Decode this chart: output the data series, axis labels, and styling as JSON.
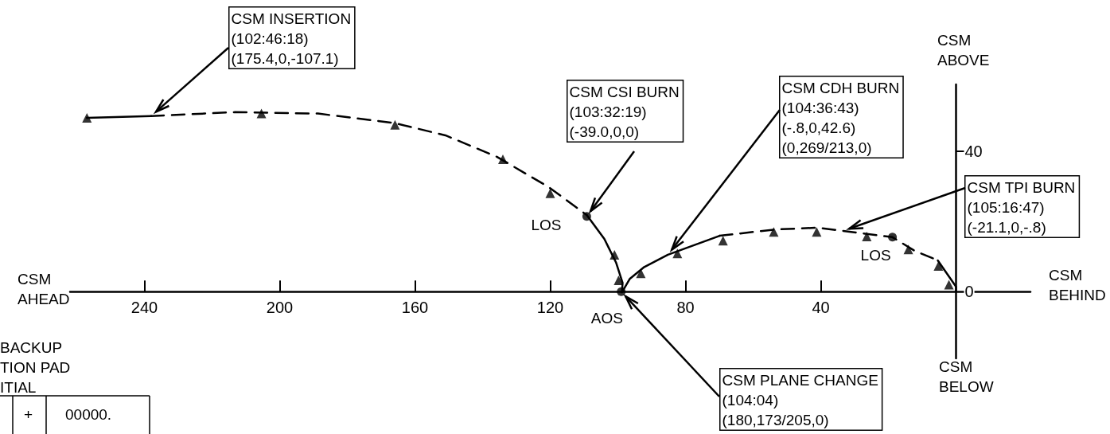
{
  "chart_data": {
    "type": "line",
    "xlim": [
      262,
      -22
    ],
    "ylim": [
      -19,
      59
    ],
    "xticks": [
      240,
      200,
      160,
      120,
      80,
      40
    ],
    "yticks": [
      0,
      40
    ],
    "grid": false,
    "series": [
      {
        "line_style": "solid",
        "color": "#000000",
        "x": [
          257,
          238
        ],
        "values": [
          49.5,
          50
        ]
      },
      {
        "line_style": "dashed",
        "color": "#000000",
        "x": [
          238,
          213.2,
          188.7,
          166.1,
          151,
          135.8,
          120.5,
          109.2
        ],
        "values": [
          50,
          51.1,
          50.7,
          48,
          44.5,
          38.4,
          29.8,
          21.8
        ]
      },
      {
        "line_style": "solid",
        "color": "#000000",
        "x": [
          109.2,
          104,
          100.5,
          98.6,
          98.8,
          96.5,
          92.2,
          85.2,
          69.9
        ],
        "values": [
          21.8,
          15,
          8.2,
          2.5,
          -0.2,
          3.6,
          7,
          10.5,
          15.9
        ]
      },
      {
        "line_style": "dashed",
        "color": "#000000",
        "x": [
          69.9,
          53.4,
          40.9,
          33.4,
          18.8,
          12.2,
          5.4
        ],
        "values": [
          15.9,
          17.7,
          18.2,
          17.3,
          15.5,
          11.6,
          8.9
        ]
      },
      {
        "line_style": "solid",
        "color": "#000000",
        "x": [
          5.4,
          0,
          0
        ],
        "values": [
          8.9,
          1.4,
          0
        ]
      },
      {
        "type": "scatter",
        "marker": "triangle",
        "color": "#000000",
        "x": [
          257,
          205.4,
          165.9,
          134,
          120,
          101,
          99.8,
          93.2,
          82.4,
          68.9,
          53.9,
          41.2,
          26.4,
          14.1,
          5.2,
          2.1
        ],
        "values": [
          49.5,
          50.7,
          47.5,
          37.7,
          28,
          10.5,
          3.2,
          5.2,
          10.9,
          14.5,
          17,
          17,
          15.7,
          12,
          7.3,
          2
        ]
      },
      {
        "type": "scatter",
        "marker": "circle",
        "color": "#000000",
        "x": [
          109.2,
          18.8,
          99
        ],
        "values": [
          21.4,
          15.5,
          0
        ]
      }
    ],
    "annotations": [
      {
        "text": "CSM INSERTION\n(102:46:18)\n(175.4,0,-107.1)",
        "x": 238,
        "y": 50
      },
      {
        "text": "CSM CSI BURN\n(103:32:19)\n(-39.0,0,0)",
        "x": 109.2,
        "y": 21.4
      },
      {
        "text": "CSM CDH BURN\n(104:36:43)\n(-.8,0,42.6)\n(0,269/213,0)",
        "x": 85.2,
        "y": 10.5
      },
      {
        "text": "CSM TPI BURN\n(105:16:47)\n(-21.1,0,-.8)",
        "x": 33.4,
        "y": 17.3
      },
      {
        "text": "CSM PLANE CHANGE\n(104:04)\n(180,173/205,0)",
        "x": 99,
        "y": 0
      },
      {
        "text": "LOS",
        "x": 109.2,
        "y": 21.4
      },
      {
        "text": "LOS",
        "x": 18.8,
        "y": 15.5
      },
      {
        "text": "AOS",
        "x": 99,
        "y": 0
      },
      "CSM\nAHEAD",
      "CSM\nBEHIND",
      "CSM\nABOVE",
      "CSM\nBELOW",
      "BACKUP\nTION PAD\nITIAL",
      "+",
      "00000."
    ]
  }
}
